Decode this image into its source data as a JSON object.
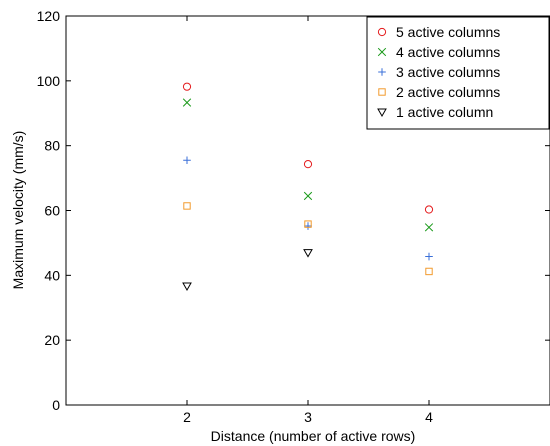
{
  "chart_data": {
    "type": "scatter",
    "title": "",
    "xlabel": "Distance (number of active rows)",
    "ylabel": "Maximum velocity (mm/s)",
    "xlim": [
      1,
      5
    ],
    "ylim": [
      0,
      120
    ],
    "x_ticks": [
      2,
      3,
      4
    ],
    "y_ticks": [
      0,
      20,
      40,
      60,
      80,
      100,
      120
    ],
    "x_tick_labels": [
      "2",
      "3",
      "4"
    ],
    "y_tick_labels": [
      "0",
      "20",
      "40",
      "60",
      "80",
      "100",
      "120"
    ],
    "grid": false,
    "legend_position": "top-right",
    "series": [
      {
        "name": "5 active columns",
        "marker": "circle",
        "color": "#e41a1c",
        "x": [
          2,
          3,
          4
        ],
        "y": [
          98.2,
          74.3,
          60.3
        ]
      },
      {
        "name": "4 active columns",
        "marker": "x",
        "color": "#1a9a1a",
        "x": [
          2,
          3,
          4
        ],
        "y": [
          93.3,
          64.5,
          54.8
        ]
      },
      {
        "name": "3 active columns",
        "marker": "plus",
        "color": "#3a6fd8",
        "x": [
          2,
          3,
          4
        ],
        "y": [
          75.5,
          55.2,
          45.8
        ]
      },
      {
        "name": "2 active columns",
        "marker": "square",
        "color": "#f29b2e",
        "x": [
          2,
          3,
          4
        ],
        "y": [
          61.4,
          55.8,
          41.2
        ]
      },
      {
        "name": "1 active column",
        "marker": "triangle-down",
        "color": "#000000",
        "x": [
          2,
          3
        ],
        "y": [
          36.7,
          47.0
        ]
      }
    ]
  }
}
